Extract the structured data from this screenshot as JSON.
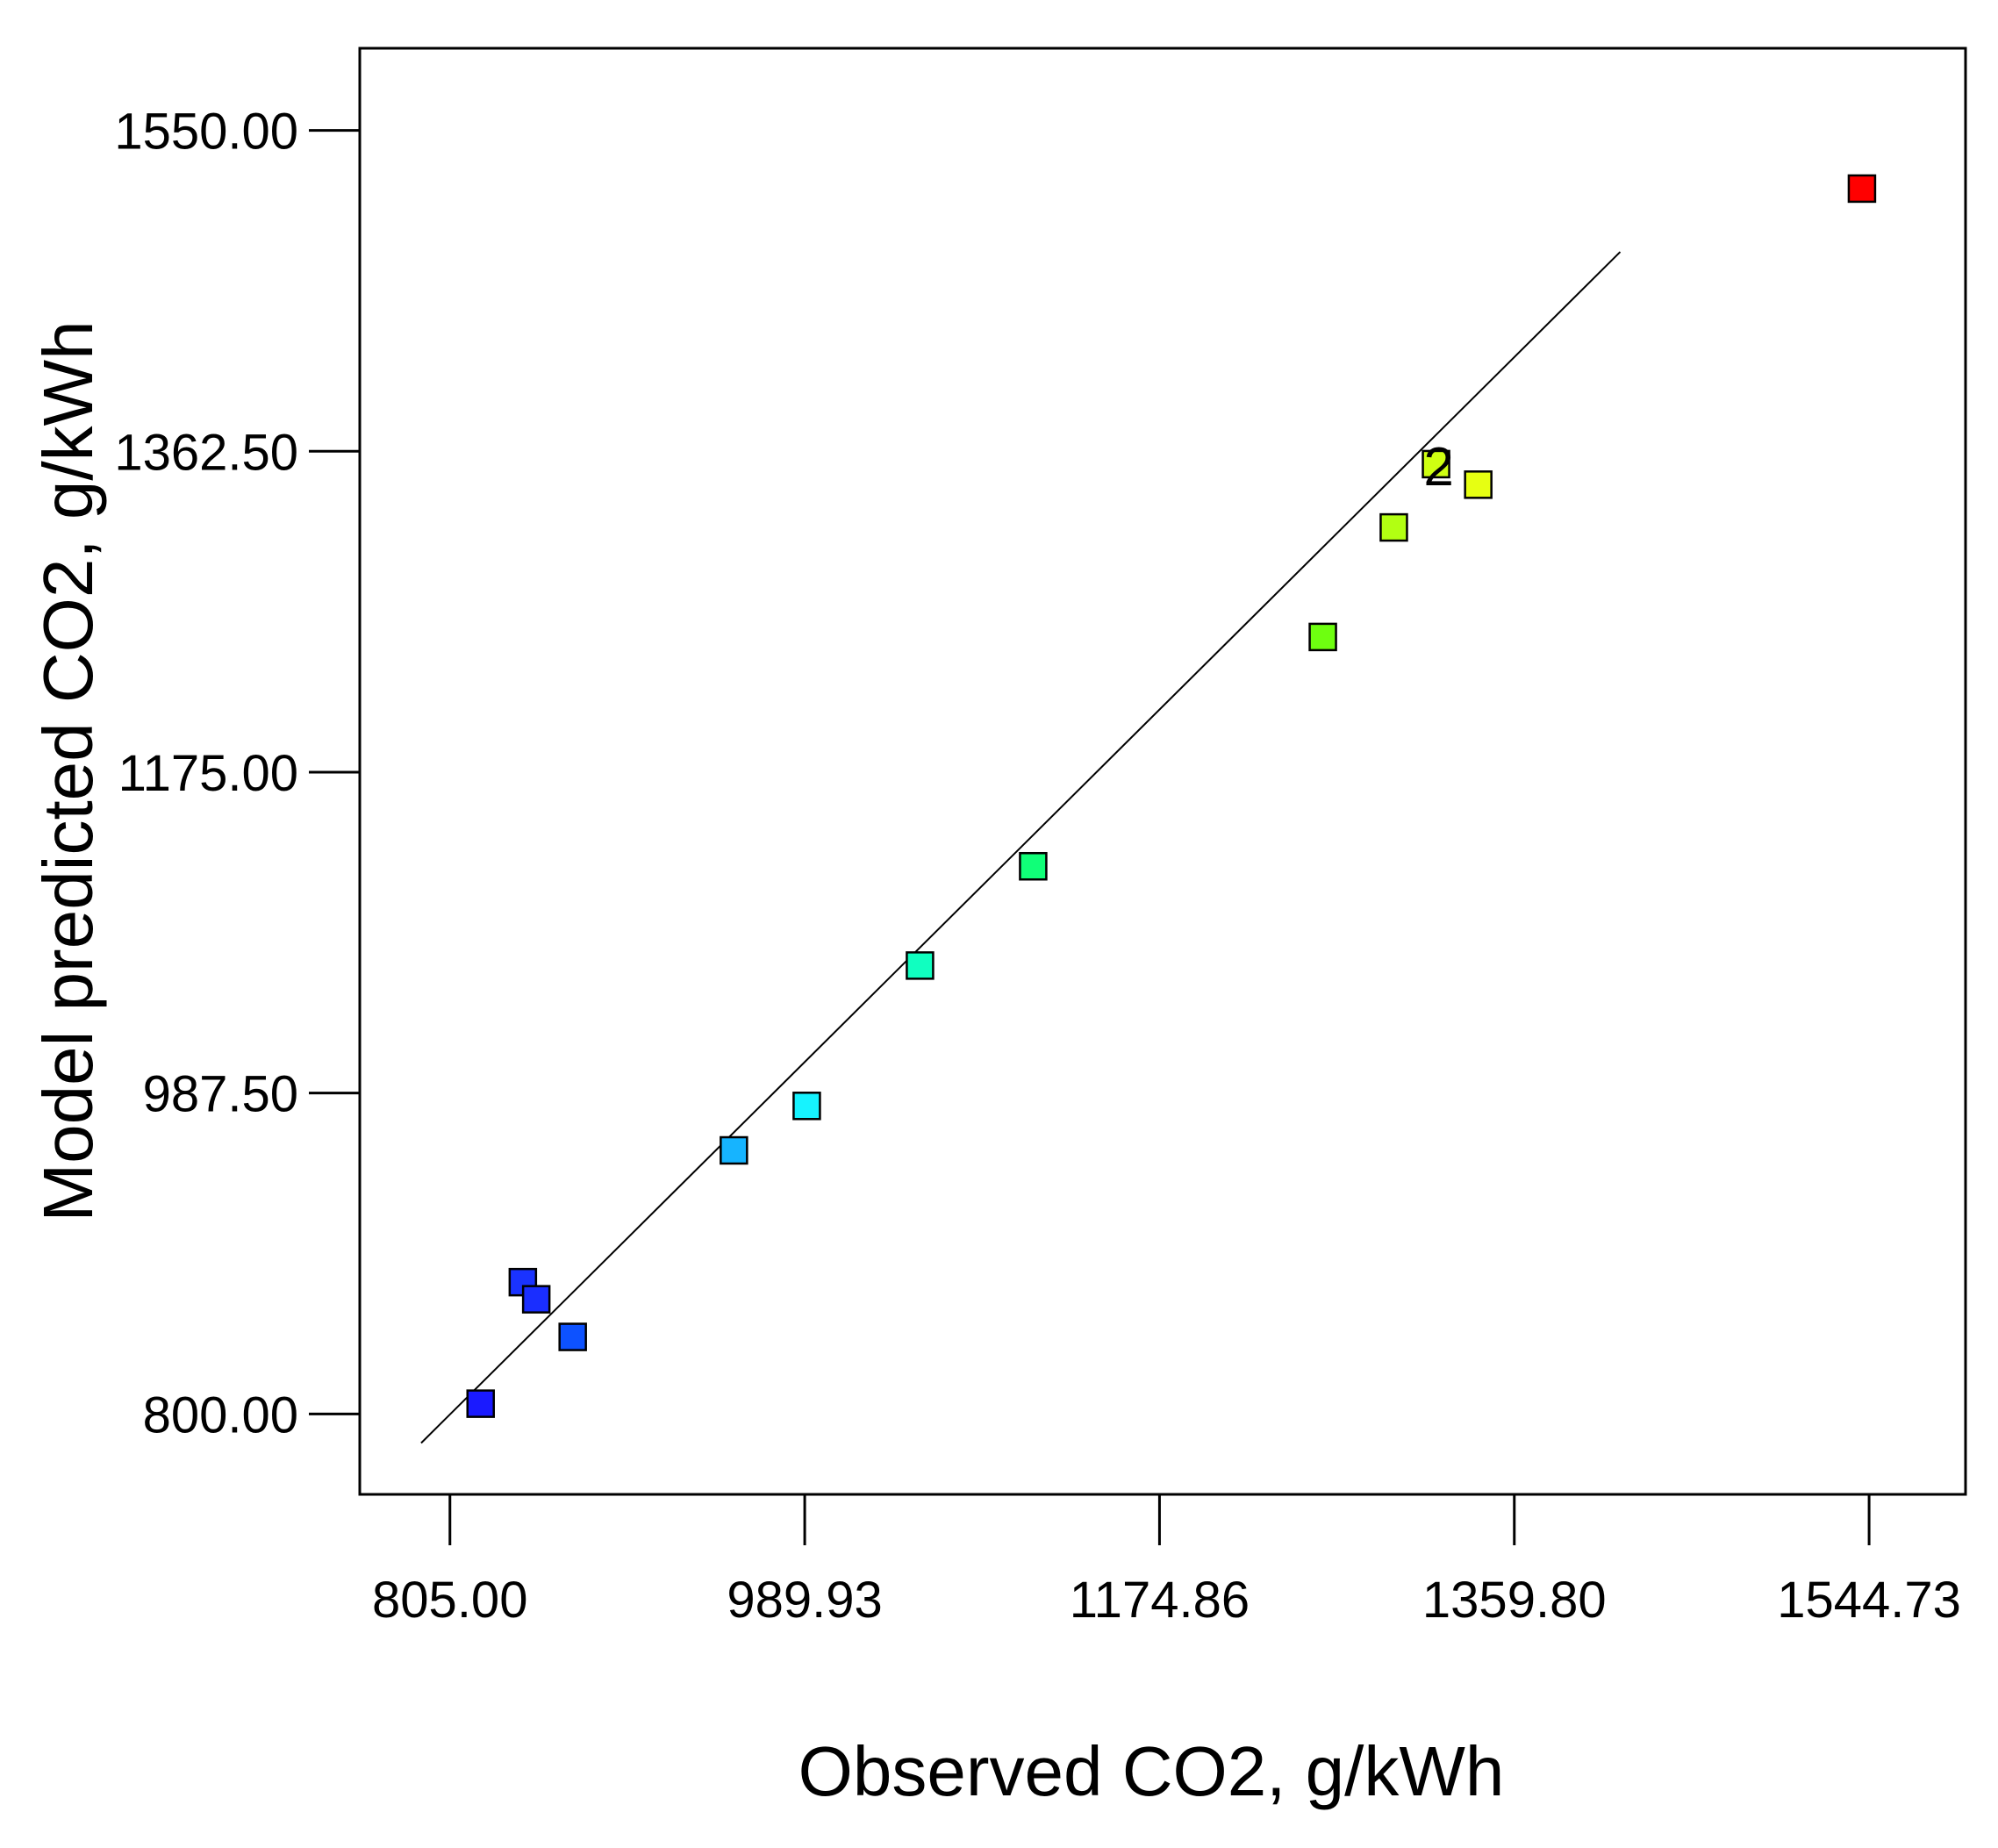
{
  "chart_data": {
    "type": "scatter",
    "title": "",
    "xlabel": "Observed CO2, g/kWh",
    "ylabel": "Model predicted CO2, g/kWh",
    "xlim": [
      758,
      1595
    ],
    "ylim": [
      753,
      1598
    ],
    "x_ticks": [
      805.0,
      989.93,
      1174.86,
      1359.8,
      1544.73
    ],
    "x_tick_labels": [
      "805.00",
      "989.93",
      "1174.86",
      "1359.80",
      "1544.73"
    ],
    "y_ticks": [
      800.0,
      987.5,
      1175.0,
      1362.5,
      1550.0
    ],
    "y_tick_labels": [
      "800.00",
      "987.50",
      "1175.00",
      "1362.50",
      "1550.00"
    ],
    "fit_line": {
      "x": [
        790,
        1415
      ],
      "y": [
        783,
        1479
      ]
    },
    "points": [
      {
        "x": 821,
        "y": 806,
        "color": "#1a1aff"
      },
      {
        "x": 843,
        "y": 877,
        "color": "#1a33ff"
      },
      {
        "x": 850,
        "y": 867,
        "color": "#1a2eff"
      },
      {
        "x": 869,
        "y": 845,
        "color": "#0d52ff"
      },
      {
        "x": 953,
        "y": 954,
        "color": "#16b4ff"
      },
      {
        "x": 991,
        "y": 980,
        "color": "#16f3ff"
      },
      {
        "x": 1050,
        "y": 1062,
        "color": "#10ffc0"
      },
      {
        "x": 1109,
        "y": 1120,
        "color": "#10ff78"
      },
      {
        "x": 1260,
        "y": 1254,
        "color": "#6eff10"
      },
      {
        "x": 1297,
        "y": 1318,
        "color": "#b2ff12"
      },
      {
        "x": 1319,
        "y": 1355,
        "color": "#cfff12"
      },
      {
        "x": 1341,
        "y": 1343,
        "color": "#e6ff12"
      },
      {
        "x": 1541,
        "y": 1516,
        "color": "#ff0000"
      }
    ],
    "annotations": [
      {
        "text": "2",
        "x": 1319,
        "y": 1355
      }
    ]
  }
}
